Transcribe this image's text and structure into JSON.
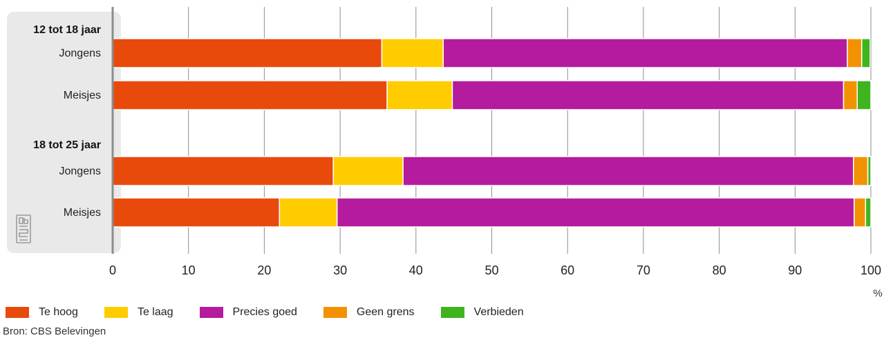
{
  "chart_data": {
    "type": "bar",
    "orientation": "horizontal",
    "stacked": true,
    "groups": [
      {
        "label": "12 tot 18 jaar",
        "rows": [
          0,
          1
        ]
      },
      {
        "label": "18 tot 25 jaar",
        "rows": [
          2,
          3
        ]
      }
    ],
    "categories": [
      "Jongens",
      "Meisjes",
      "Jongens",
      "Meisjes"
    ],
    "series": [
      {
        "name": "Te hoog",
        "color": "#e84a0c",
        "values": [
          35.5,
          36.2,
          29.1,
          22.0
        ]
      },
      {
        "name": "Te laag",
        "color": "#ffcc00",
        "values": [
          8.1,
          8.6,
          9.2,
          7.6
        ]
      },
      {
        "name": "Precies goed",
        "color": "#b41b9e",
        "values": [
          53.3,
          51.6,
          59.4,
          68.2
        ]
      },
      {
        "name": "Geen grens",
        "color": "#f39200",
        "values": [
          1.9,
          1.8,
          1.9,
          1.5
        ]
      },
      {
        "name": "Verbieden",
        "color": "#3eb51e",
        "values": [
          1.1,
          1.8,
          0.4,
          0.7
        ]
      }
    ],
    "xlim": [
      0,
      100
    ],
    "xticks": [
      "0",
      "10",
      "20",
      "30",
      "40",
      "50",
      "60",
      "70",
      "80",
      "90",
      "100"
    ],
    "xunit": "%",
    "grid": true,
    "legend_position": "bottom"
  },
  "source": "Bron: CBS Belevingen",
  "logo": "cbs",
  "colors": {
    "panel": "#e8e9e8",
    "axis": "#8c8c8c",
    "grid": "#8c8c8c"
  }
}
